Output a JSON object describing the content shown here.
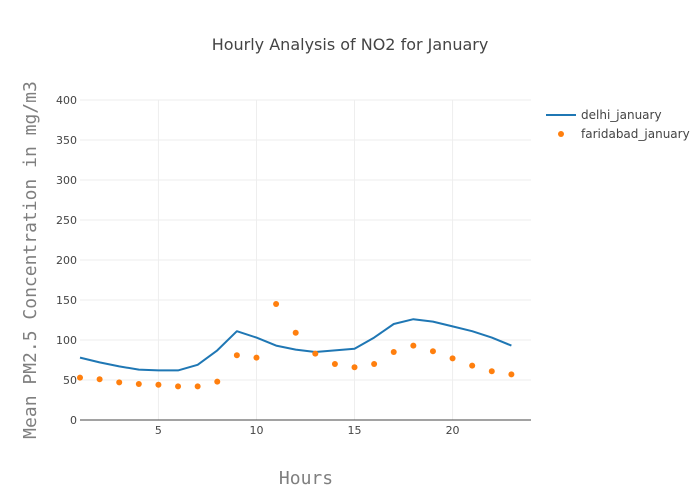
{
  "chart_data": {
    "type": "line",
    "title": "Hourly Analysis of NO2 for January",
    "xlabel": "Hours",
    "ylabel": "Mean PM2.5 Concentration in mg/m3",
    "xlim": [
      1,
      24
    ],
    "ylim": [
      0,
      400
    ],
    "x_ticks": [
      5,
      10,
      15,
      20
    ],
    "y_ticks": [
      0,
      50,
      100,
      150,
      200,
      250,
      300,
      350,
      400
    ],
    "grid": true,
    "legend_position": "top-right",
    "series": [
      {
        "name": "delhi_january",
        "mode": "lines",
        "color": "#1f77b4",
        "x": [
          1,
          2,
          3,
          4,
          5,
          6,
          7,
          8,
          9,
          10,
          11,
          12,
          13,
          14,
          15,
          16,
          17,
          18,
          19,
          20,
          21,
          22,
          23
        ],
        "values": [
          78,
          72,
          67,
          63,
          62,
          62,
          69,
          87,
          111,
          103,
          93,
          88,
          85,
          87,
          89,
          103,
          120,
          126,
          123,
          117,
          111,
          103,
          93
        ]
      },
      {
        "name": "faridabad_january",
        "mode": "markers",
        "color": "#ff7f0e",
        "x": [
          1,
          2,
          3,
          4,
          5,
          6,
          7,
          8,
          9,
          10,
          11,
          12,
          13,
          14,
          15,
          16,
          17,
          18,
          19,
          20,
          21,
          22,
          23
        ],
        "values": [
          53,
          51,
          47,
          45,
          44,
          42,
          42,
          48,
          81,
          78,
          145,
          109,
          83,
          70,
          66,
          70,
          85,
          93,
          86,
          77,
          68,
          61,
          57
        ]
      }
    ]
  }
}
